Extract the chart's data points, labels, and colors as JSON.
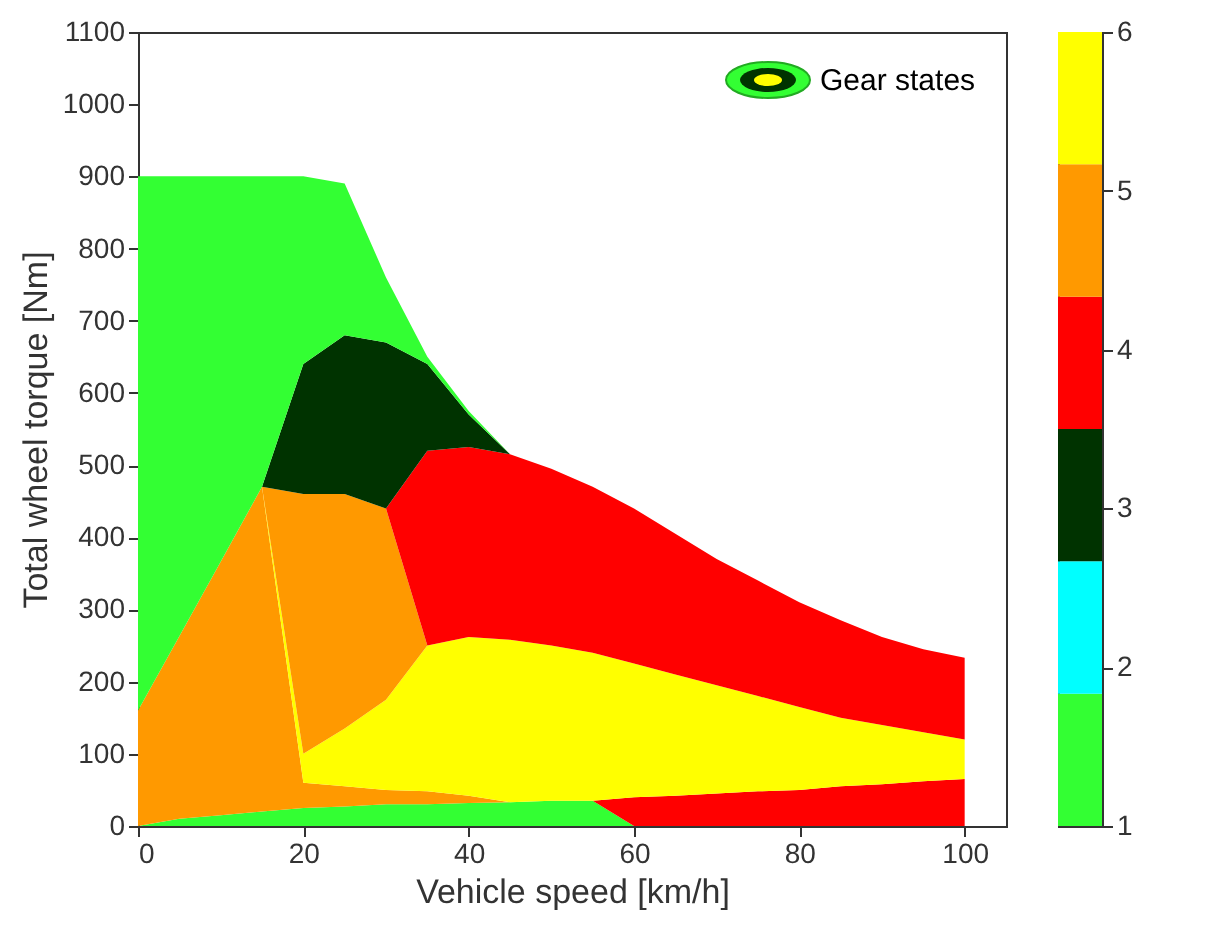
{
  "chart_data": {
    "type": "area",
    "stacked": true,
    "xlabel": "Vehicle speed [km/h]",
    "ylabel": "Total wheel torque [Nm]",
    "legend_title": "Gear states",
    "x": [
      0,
      5,
      10,
      15,
      20,
      25,
      30,
      35,
      40,
      45,
      50,
      55,
      60,
      65,
      70,
      75,
      80,
      85,
      90,
      95,
      100
    ],
    "xlim": [
      0,
      105
    ],
    "xticks": [
      0,
      20,
      40,
      60,
      80,
      100
    ],
    "ylim": [
      0,
      1100
    ],
    "yticks": [
      0,
      100,
      200,
      300,
      400,
      500,
      600,
      700,
      800,
      900,
      1000,
      1100
    ],
    "clim": [
      1,
      6
    ],
    "cticks": [
      1,
      2,
      3,
      4,
      5,
      6
    ],
    "colors": [
      "#33ff33",
      "#00ffff",
      "#003300",
      "#ff0000",
      "#ff9900",
      "#ffff00"
    ],
    "series": [
      {
        "color": "#33ff33",
        "values": [
          0,
          10,
          15,
          20,
          25,
          27,
          30,
          30,
          32,
          33,
          35,
          35,
          0,
          0,
          0,
          0,
          0,
          0,
          0,
          0,
          0
        ]
      },
      {
        "color": "#ff0000",
        "values": [
          0,
          0,
          0,
          0,
          0,
          0,
          0,
          0,
          0,
          0,
          0,
          0,
          40,
          42,
          45,
          48,
          50,
          55,
          58,
          62,
          65
        ]
      },
      {
        "color": "#ff9900",
        "values": [
          160,
          253,
          351,
          450,
          35,
          28,
          20,
          18,
          10,
          0,
          0,
          0,
          0,
          0,
          0,
          0,
          0,
          0,
          0,
          0,
          0
        ]
      },
      {
        "color": "#ffff00",
        "values": [
          0,
          0,
          0,
          0,
          40,
          80,
          125,
          202,
          220,
          225,
          215,
          205,
          185,
          168,
          150,
          132,
          115,
          95,
          82,
          68,
          55
        ]
      },
      {
        "color": "#ff9900",
        "values": [
          0,
          0,
          0,
          0,
          360,
          325,
          265,
          0,
          0,
          0,
          0,
          0,
          0,
          0,
          0,
          0,
          0,
          0,
          0,
          0,
          0
        ]
      },
      {
        "color": "#ff0000",
        "values": [
          0,
          0,
          0,
          0,
          0,
          0,
          0,
          270,
          263,
          257,
          245,
          230,
          215,
          195,
          175,
          160,
          145,
          135,
          122,
          115,
          113
        ]
      },
      {
        "color": "#003300",
        "values": [
          0,
          0,
          0,
          0,
          180,
          220,
          230,
          120,
          45,
          0,
          0,
          0,
          0,
          0,
          0,
          0,
          0,
          0,
          0,
          0,
          0
        ]
      },
      {
        "color": "#33ff33",
        "values": [
          740,
          637,
          534,
          430,
          260,
          210,
          90,
          10,
          5,
          0,
          0,
          0,
          0,
          0,
          0,
          0,
          0,
          0,
          0,
          0,
          0
        ]
      }
    ]
  }
}
